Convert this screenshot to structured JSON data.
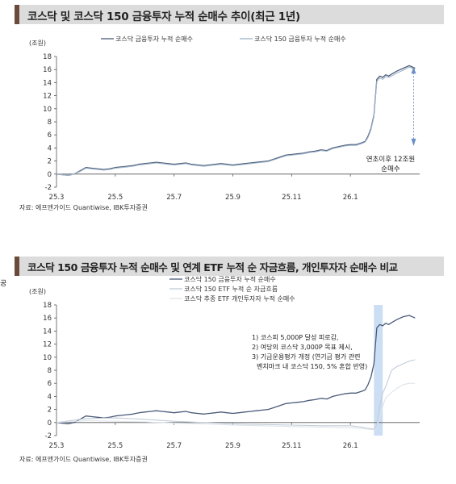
{
  "chart_data": [
    {
      "type": "line",
      "title": "코스닥 및 코스닥 150 금융투자 누적 순매수 추이(최근 1년)",
      "ylabel": "(조원)",
      "ylim": [
        -2,
        18
      ],
      "yticks": [
        -2,
        0,
        2,
        4,
        6,
        8,
        10,
        12,
        14,
        16,
        18
      ],
      "xticks": [
        "25.3",
        "25.5",
        "25.7",
        "25.9",
        "25.11",
        "26.1"
      ],
      "xrange": [
        0,
        12
      ],
      "legend_position": "top-center",
      "annotation": [
        "연초이후 12조원",
        "순매수"
      ],
      "source": "자료: 에프앤가이드 Quantiwise, IBK투자증권",
      "series": [
        {
          "name": "코스닥 금융투자 누적 순매수",
          "color": "#4a5a78",
          "x": [
            0,
            0.2,
            0.4,
            0.6,
            0.8,
            1.0,
            1.2,
            1.4,
            1.6,
            1.8,
            2.0,
            2.2,
            2.4,
            2.6,
            2.8,
            3.0,
            3.2,
            3.4,
            3.6,
            3.8,
            4.0,
            4.2,
            4.4,
            4.6,
            4.8,
            5.0,
            5.2,
            5.4,
            5.6,
            5.8,
            6.0,
            6.2,
            6.4,
            6.6,
            6.8,
            7.0,
            7.2,
            7.4,
            7.6,
            7.8,
            8.0,
            8.2,
            8.4,
            8.6,
            8.8,
            9.0,
            9.2,
            9.4,
            9.6,
            9.8,
            10.0,
            10.2,
            10.4,
            10.5,
            10.6,
            10.7,
            10.8,
            10.9,
            11.0,
            11.1,
            11.2,
            11.3,
            11.4,
            11.6,
            11.8,
            12.0,
            12.2
          ],
          "values": [
            0,
            -0.1,
            -0.2,
            0,
            0.5,
            1.0,
            0.9,
            0.8,
            0.7,
            0.8,
            1.0,
            1.1,
            1.2,
            1.3,
            1.5,
            1.6,
            1.7,
            1.8,
            1.7,
            1.6,
            1.5,
            1.6,
            1.7,
            1.5,
            1.4,
            1.3,
            1.4,
            1.5,
            1.6,
            1.5,
            1.4,
            1.5,
            1.6,
            1.7,
            1.8,
            1.9,
            2.0,
            2.3,
            2.6,
            2.9,
            3.0,
            3.1,
            3.2,
            3.4,
            3.5,
            3.7,
            3.6,
            4.0,
            4.2,
            4.4,
            4.5,
            4.5,
            4.8,
            5.0,
            5.8,
            7.0,
            9.0,
            14.5,
            15.0,
            14.8,
            15.2,
            15.0,
            15.3,
            15.8,
            16.2,
            16.6,
            16.2
          ]
        },
        {
          "name": "코스닥 150 금융투자 누적 순매수",
          "color": "#9fb4c9",
          "x": [
            0,
            0.2,
            0.4,
            0.6,
            0.8,
            1.0,
            1.2,
            1.4,
            1.6,
            1.8,
            2.0,
            2.2,
            2.4,
            2.6,
            2.8,
            3.0,
            3.2,
            3.4,
            3.6,
            3.8,
            4.0,
            4.2,
            4.4,
            4.6,
            4.8,
            5.0,
            5.2,
            5.4,
            5.6,
            5.8,
            6.0,
            6.2,
            6.4,
            6.6,
            6.8,
            7.0,
            7.2,
            7.4,
            7.6,
            7.8,
            8.0,
            8.2,
            8.4,
            8.6,
            8.8,
            9.0,
            9.2,
            9.4,
            9.6,
            9.8,
            10.0,
            10.2,
            10.4,
            10.5,
            10.6,
            10.7,
            10.8,
            10.9,
            11.0,
            11.1,
            11.2,
            11.3,
            11.4,
            11.6,
            11.8,
            12.0,
            12.2
          ],
          "values": [
            0,
            -0.1,
            -0.2,
            0,
            0.4,
            0.9,
            0.8,
            0.7,
            0.6,
            0.7,
            0.9,
            1.0,
            1.1,
            1.2,
            1.4,
            1.5,
            1.6,
            1.7,
            1.6,
            1.5,
            1.4,
            1.5,
            1.6,
            1.4,
            1.3,
            1.2,
            1.3,
            1.4,
            1.5,
            1.4,
            1.3,
            1.4,
            1.5,
            1.6,
            1.7,
            1.8,
            1.9,
            2.2,
            2.5,
            2.8,
            2.9,
            3.0,
            3.1,
            3.3,
            3.4,
            3.6,
            3.5,
            3.9,
            4.1,
            4.3,
            4.4,
            4.4,
            4.7,
            4.9,
            5.6,
            6.8,
            8.8,
            14.2,
            14.7,
            14.5,
            14.9,
            14.8,
            15.0,
            15.5,
            15.9,
            16.4,
            16.0
          ]
        }
      ]
    },
    {
      "type": "line",
      "title": "코스닥 150 금융투자 누적 순매수 및 연계 ETF 누적 순 자금흐름, 개인투자자 순매수 비교",
      "ylabel": "(조원)",
      "ylim": [
        -2,
        18
      ],
      "yticks": [
        -2,
        0,
        2,
        4,
        6,
        8,
        10,
        12,
        14,
        16,
        18
      ],
      "xticks": [
        "25.3",
        "25.5",
        "25.7",
        "25.9",
        "25.11",
        "26.1"
      ],
      "xrange": [
        0,
        12
      ],
      "legend_position": "top-center",
      "highlight_x": [
        10.8,
        11.1
      ],
      "annotation": [
        "1) 코스피 5,000P 달성 피로감,",
        "2) 여당의 코스닥 3,000P 목표 제시,",
        "3) 기금운용평가 개정 (연기금 평가 관련",
        "벤치마크 내 코스닥 150, 5% 혼합 반영)"
      ],
      "source": "자료: 에프앤가이드 Quantiwise, IBK투자증권",
      "series": [
        {
          "name": "코스닥 150 금융투자 누적 순매수",
          "color": "#4a5a78",
          "x": [
            0,
            0.2,
            0.4,
            0.6,
            0.8,
            1.0,
            1.2,
            1.4,
            1.6,
            1.8,
            2.0,
            2.2,
            2.4,
            2.6,
            2.8,
            3.0,
            3.2,
            3.4,
            3.6,
            3.8,
            4.0,
            4.2,
            4.4,
            4.6,
            4.8,
            5.0,
            5.2,
            5.4,
            5.6,
            5.8,
            6.0,
            6.2,
            6.4,
            6.6,
            6.8,
            7.0,
            7.2,
            7.4,
            7.6,
            7.8,
            8.0,
            8.2,
            8.4,
            8.6,
            8.8,
            9.0,
            9.2,
            9.4,
            9.6,
            9.8,
            10.0,
            10.2,
            10.4,
            10.5,
            10.6,
            10.7,
            10.8,
            10.9,
            11.0,
            11.1,
            11.2,
            11.3,
            11.4,
            11.6,
            11.8,
            12.0,
            12.2
          ],
          "values": [
            0,
            -0.1,
            -0.2,
            0,
            0.5,
            1.0,
            0.9,
            0.8,
            0.7,
            0.8,
            1.0,
            1.1,
            1.2,
            1.3,
            1.5,
            1.6,
            1.7,
            1.8,
            1.7,
            1.6,
            1.5,
            1.6,
            1.7,
            1.5,
            1.4,
            1.3,
            1.4,
            1.5,
            1.6,
            1.5,
            1.4,
            1.5,
            1.6,
            1.7,
            1.8,
            1.9,
            2.0,
            2.3,
            2.6,
            2.9,
            3.0,
            3.1,
            3.2,
            3.4,
            3.5,
            3.7,
            3.6,
            4.0,
            4.2,
            4.4,
            4.5,
            4.5,
            4.8,
            5.0,
            5.8,
            7.0,
            9.0,
            14.5,
            15.0,
            14.8,
            15.2,
            15.0,
            15.3,
            15.8,
            16.2,
            16.4,
            16.0
          ]
        },
        {
          "name": "코스닥 150 ETF 누적 순 자금흐름",
          "color": "#c3ccd8",
          "x": [
            0,
            1.0,
            2.0,
            3.0,
            4.0,
            5.0,
            6.0,
            7.0,
            8.0,
            9.0,
            10.0,
            10.4,
            10.6,
            10.8,
            10.9,
            11.0,
            11.1,
            11.2,
            11.4,
            11.6,
            11.8,
            12.0,
            12.2
          ],
          "values": [
            0,
            0.6,
            0.7,
            0.5,
            0.2,
            0,
            -0.2,
            -0.3,
            -0.4,
            -0.5,
            -0.5,
            -0.7,
            -0.9,
            -1.0,
            -0.5,
            2.5,
            4.5,
            5.5,
            8.0,
            8.6,
            9.0,
            9.4,
            9.6
          ]
        },
        {
          "name": "코스닥 추종 ETF 개인투자자 누적 순매수",
          "color": "#dde3ea",
          "x": [
            0,
            1.0,
            2.0,
            3.0,
            4.0,
            5.0,
            6.0,
            7.0,
            8.0,
            9.0,
            10.0,
            10.4,
            10.6,
            10.8,
            10.9,
            11.0,
            11.1,
            11.2,
            11.4,
            11.6,
            11.8,
            12.0,
            12.2
          ],
          "values": [
            0,
            0.3,
            0.2,
            0.1,
            -0.1,
            -0.2,
            -0.4,
            -0.5,
            -0.6,
            -0.7,
            -0.8,
            -0.9,
            -1.0,
            -1.1,
            -0.8,
            1.0,
            2.5,
            3.8,
            4.6,
            5.3,
            5.8,
            6.0,
            6.0
          ]
        }
      ]
    }
  ],
  "stray_char": "공"
}
